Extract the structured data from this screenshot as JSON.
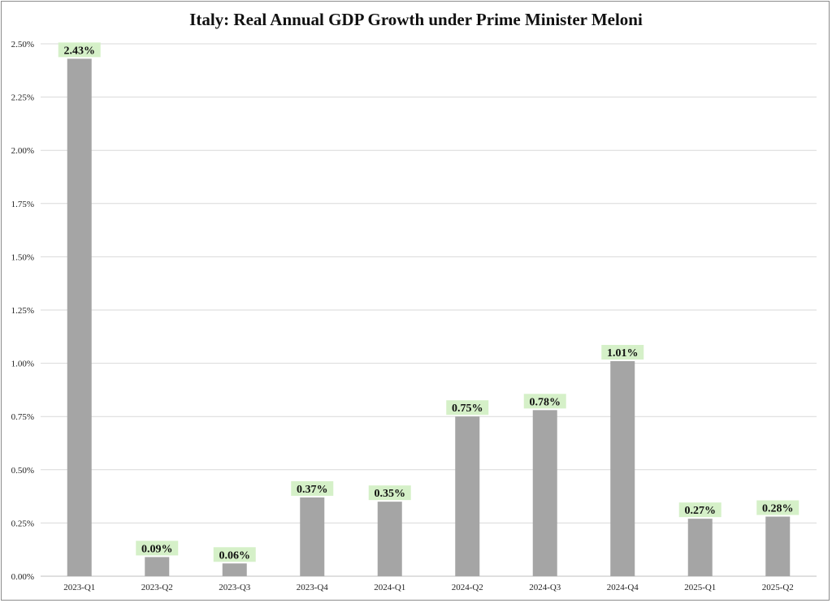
{
  "chart_data": {
    "type": "bar",
    "title": "Italy: Real Annual GDP Growth under Prime Minister Meloni",
    "xlabel": "",
    "ylabel": "",
    "ylim": [
      0,
      2.5
    ],
    "yticks": [
      "0.00%",
      "0.25%",
      "0.50%",
      "0.75%",
      "1.00%",
      "1.25%",
      "1.50%",
      "1.75%",
      "2.00%",
      "2.25%",
      "2.50%"
    ],
    "categories": [
      "2023-Q1",
      "2023-Q2",
      "2023-Q3",
      "2023-Q4",
      "2024-Q1",
      "2024-Q2",
      "2024-Q3",
      "2024-Q4",
      "2025-Q1",
      "2025-Q2"
    ],
    "values": [
      2.43,
      0.09,
      0.06,
      0.37,
      0.35,
      0.75,
      0.78,
      1.01,
      0.27,
      0.28
    ],
    "data_labels": [
      "2.43%",
      "0.09%",
      "0.06%",
      "0.37%",
      "0.35%",
      "0.75%",
      "0.78%",
      "1.01%",
      "0.27%",
      "0.28%"
    ],
    "grid": true,
    "legend": "none",
    "colors": {
      "bar": "#a5a5a5",
      "label_bg": "#d5f0c8",
      "grid": "#d9d9d9"
    }
  }
}
